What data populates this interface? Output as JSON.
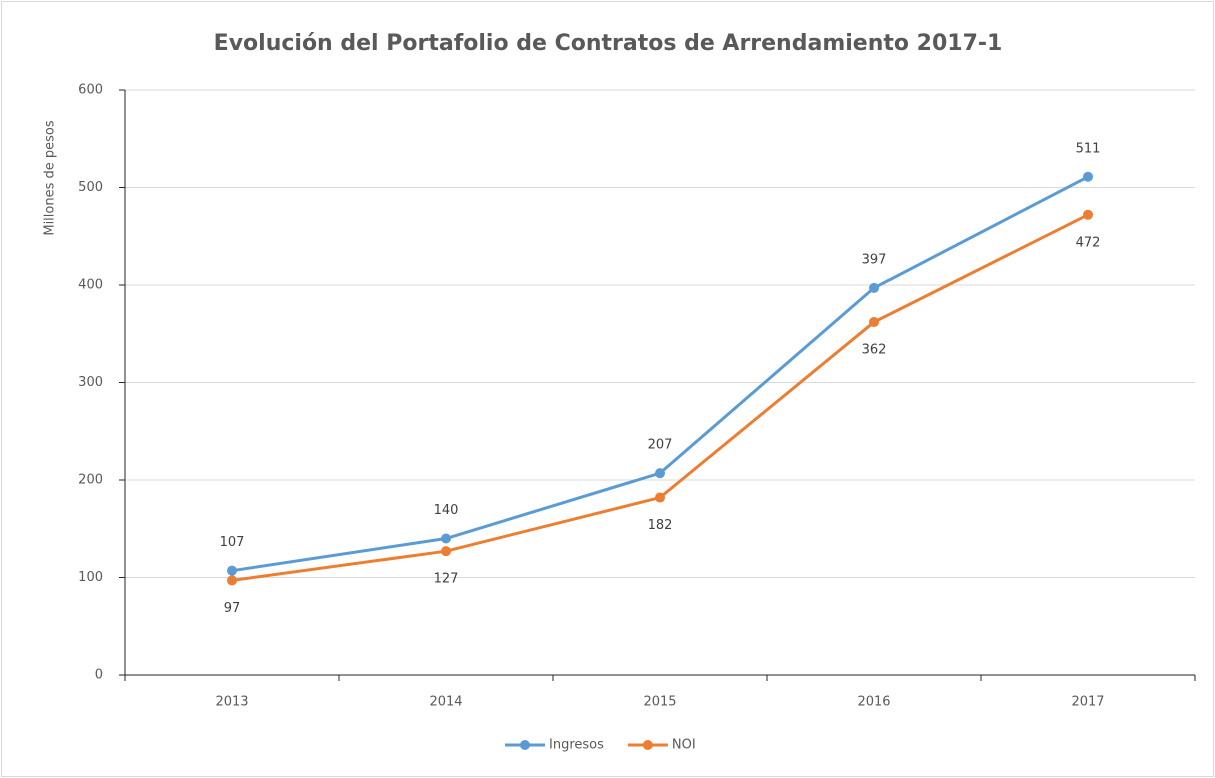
{
  "chart_data": {
    "type": "line",
    "title": "Evolución del Portafolio de Contratos de Arrendamiento 2017-1",
    "y_label": "Millones de pesos",
    "categories": [
      "2013",
      "2014",
      "2015",
      "2016",
      "2017"
    ],
    "series": [
      {
        "name": "Ingresos",
        "color": "#5b9bd5",
        "values": [
          107,
          140,
          207,
          397,
          511
        ]
      },
      {
        "name": "NOI",
        "color": "#ed7d31",
        "values": [
          97,
          127,
          182,
          362,
          472
        ]
      }
    ],
    "ylim": [
      0,
      600
    ],
    "yticks": [
      0,
      100,
      200,
      300,
      400,
      500,
      600
    ],
    "grid": true,
    "legend": "bottom"
  }
}
